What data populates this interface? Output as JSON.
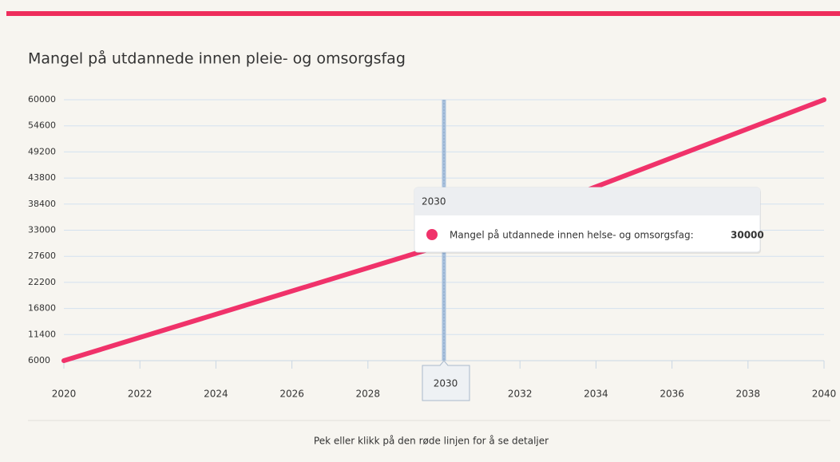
{
  "chart_data": {
    "type": "line",
    "title": "Mangel på utdannede innen pleie- og omsorgsfag",
    "x": [
      2020,
      2030,
      2040
    ],
    "series": [
      {
        "name": "Mangel på utdannede innen helse- og omsorgsfag:",
        "color": "#f0326a",
        "values": [
          6000,
          30000,
          60000
        ]
      }
    ],
    "xlim": [
      2020,
      2040
    ],
    "xticks": [
      2020,
      2022,
      2024,
      2026,
      2028,
      2030,
      2032,
      2034,
      2036,
      2038,
      2040
    ],
    "ylim": [
      6000,
      60000
    ],
    "yticks": [
      6000,
      11400,
      16800,
      22200,
      27600,
      33000,
      38400,
      43800,
      49200,
      54600,
      60000
    ],
    "grid": true,
    "tooltip_index": 1,
    "footer": "Pek eller klikk på den røde linjen for å se detaljer"
  }
}
